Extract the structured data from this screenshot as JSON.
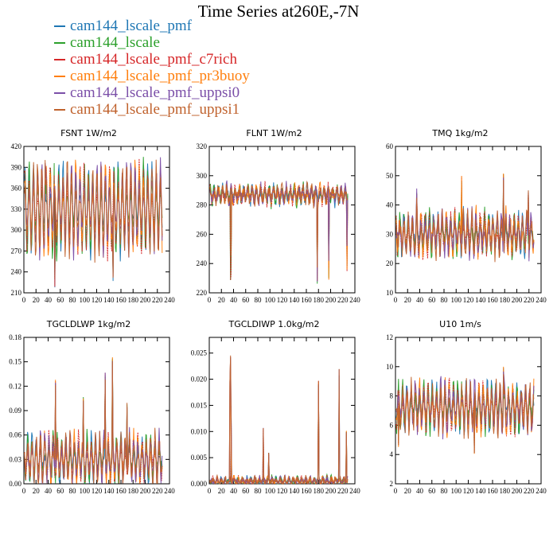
{
  "title": "Time Series at260E,-7N",
  "legend": [
    {
      "name": "cam144_lscale_pmf",
      "color": "#1f77b4"
    },
    {
      "name": "cam144_lscale",
      "color": "#2ca02c"
    },
    {
      "name": "cam144_lscale_pmf_c7rich",
      "color": "#d62728"
    },
    {
      "name": "cam144_lscale_pmf_pr3buoy",
      "color": "#ff7f0e"
    },
    {
      "name": "cam144_lscale_pmf_uppsi0",
      "color": "#7b4fa8"
    },
    {
      "name": "cam144_lscale_pmf_uppsi1",
      "color": "#c0622d"
    }
  ],
  "chart_data": [
    {
      "type": "line",
      "title": "FSNT   1W/m2",
      "xlim": [
        0,
        240
      ],
      "ylim": [
        210,
        420
      ],
      "xticks": [
        "0",
        "20",
        "40",
        "60",
        "80",
        "100",
        "120",
        "140",
        "160",
        "180",
        "200",
        "220",
        "240"
      ],
      "yticks": [
        "210",
        "240",
        "270",
        "300",
        "330",
        "360",
        "390",
        "420"
      ],
      "x_range": [
        1,
        228
      ],
      "base": 330,
      "amp": 55,
      "noise": 12,
      "extremes": [
        [
          51,
          230
        ],
        [
          147,
          243
        ],
        [
          35,
          405
        ]
      ]
    },
    {
      "type": "line",
      "title": "FLNT   1W/m2",
      "xlim": [
        0,
        240
      ],
      "ylim": [
        220,
        320
      ],
      "xticks": [
        "0",
        "20",
        "40",
        "60",
        "80",
        "100",
        "120",
        "140",
        "160",
        "180",
        "200",
        "220",
        "240"
      ],
      "yticks": [
        "220",
        "240",
        "260",
        "280",
        "300",
        "320"
      ],
      "x_range": [
        1,
        228
      ],
      "base": 287,
      "amp": 5,
      "noise": 4,
      "extremes": [
        [
          35,
          231
        ],
        [
          36,
          246
        ],
        [
          178,
          245
        ],
        [
          197,
          242
        ],
        [
          227,
          255
        ]
      ]
    },
    {
      "type": "line",
      "title": "TMQ   1kg/m2",
      "xlim": [
        0,
        240
      ],
      "ylim": [
        10,
        60
      ],
      "xticks": [
        "0",
        "20",
        "40",
        "60",
        "80",
        "100",
        "120",
        "140",
        "160",
        "180",
        "200",
        "220",
        "240"
      ],
      "yticks": [
        "10",
        "20",
        "30",
        "40",
        "50",
        "60"
      ],
      "x_range": [
        1,
        228
      ],
      "base": 30,
      "amp": 6,
      "noise": 3,
      "extremes": [
        [
          35,
          46
        ],
        [
          109,
          50
        ],
        [
          178,
          51
        ],
        [
          219,
          46
        ]
      ]
    },
    {
      "type": "line",
      "title": "TGCLDLWP   1kg/m2",
      "xlim": [
        0,
        240
      ],
      "ylim": [
        0,
        0.18
      ],
      "xticks": [
        "0",
        "20",
        "40",
        "60",
        "80",
        "100",
        "120",
        "140",
        "160",
        "180",
        "200",
        "220",
        "240"
      ],
      "yticks": [
        "0.00",
        "0.03",
        "0.06",
        "0.09",
        "0.12",
        "0.15",
        "0.18"
      ],
      "x_range": [
        1,
        228
      ],
      "base": 0.03,
      "amp": 0.025,
      "noise": 0.01,
      "extremes": [
        [
          52,
          0.128
        ],
        [
          134,
          0.137
        ],
        [
          146,
          0.157
        ],
        [
          98,
          0.11
        ],
        [
          170,
          0.1
        ]
      ]
    },
    {
      "type": "line",
      "title": "TGCLDIWP   1.0kg/m2",
      "xlim": [
        0,
        240
      ],
      "ylim": [
        0,
        0.028
      ],
      "xticks": [
        "0",
        "20",
        "40",
        "60",
        "80",
        "100",
        "120",
        "140",
        "160",
        "180",
        "200",
        "220",
        "240"
      ],
      "yticks": [
        "0.000",
        "0.005",
        "0.010",
        "0.015",
        "0.020",
        "0.025"
      ],
      "x_range": [
        1,
        228
      ],
      "base": 0.0005,
      "amp": 0.0006,
      "noise": 0.0006,
      "extremes": [
        [
          35,
          0.0262
        ],
        [
          34,
          0.0205
        ],
        [
          36,
          0.015
        ],
        [
          89,
          0.011
        ],
        [
          180,
          0.02
        ],
        [
          214,
          0.0222
        ],
        [
          226,
          0.0102
        ],
        [
          98,
          0.006
        ]
      ]
    },
    {
      "type": "line",
      "title": "U10   1m/s",
      "xlim": [
        0,
        240
      ],
      "ylim": [
        2,
        12
      ],
      "xticks": [
        "0",
        "20",
        "40",
        "60",
        "80",
        "100",
        "120",
        "140",
        "160",
        "180",
        "200",
        "220",
        "240"
      ],
      "yticks": [
        "2",
        "4",
        "6",
        "8",
        "10",
        "12"
      ],
      "x_range": [
        1,
        228
      ],
      "base": 7.2,
      "amp": 1.4,
      "noise": 0.6,
      "extremes": [
        [
          178,
          10.1
        ],
        [
          5,
          4.8
        ],
        [
          130,
          4.2
        ]
      ]
    }
  ]
}
